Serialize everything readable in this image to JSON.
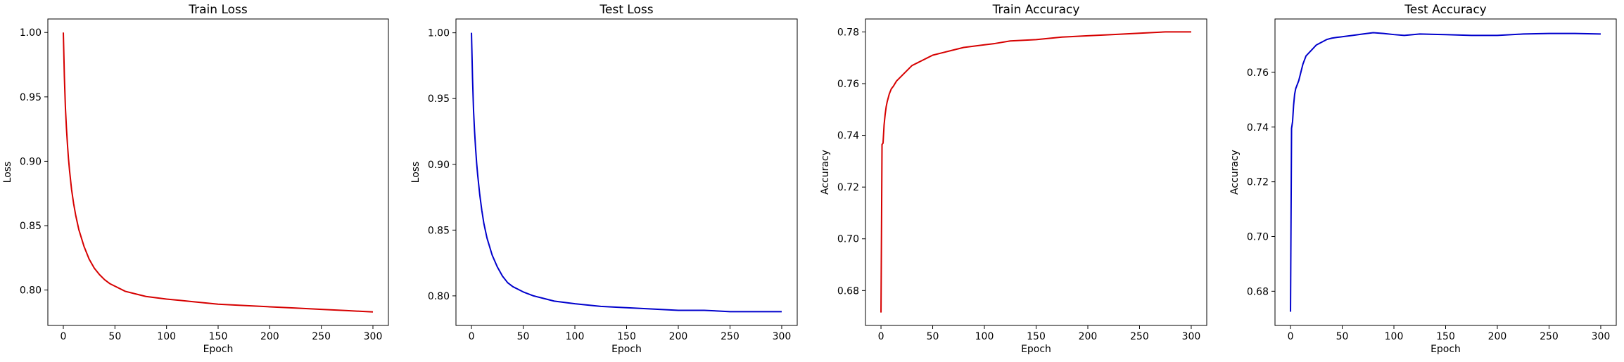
{
  "chart_data": [
    {
      "type": "line",
      "title": "Train Loss",
      "xlabel": "Epoch",
      "ylabel": "Loss",
      "xlim": [
        -15,
        315
      ],
      "ylim": [
        0.7725,
        1.0105
      ],
      "xticks": [
        0,
        50,
        100,
        150,
        200,
        250,
        300
      ],
      "yticks": [
        0.8,
        0.85,
        0.9,
        0.95,
        1.0
      ],
      "ytick_decimals": 2,
      "grid": false,
      "color": "#d60000",
      "series": [
        {
          "x": [
            0,
            1,
            2,
            3,
            4,
            5,
            6,
            8,
            10,
            12,
            15,
            20,
            25,
            30,
            35,
            40,
            45,
            50,
            60,
            70,
            80,
            90,
            100,
            125,
            150,
            175,
            200,
            225,
            250,
            275,
            300
          ],
          "y": [
            1.0,
            0.966,
            0.942,
            0.926,
            0.913,
            0.902,
            0.893,
            0.878,
            0.867,
            0.858,
            0.847,
            0.834,
            0.824,
            0.817,
            0.812,
            0.808,
            0.805,
            0.803,
            0.799,
            0.797,
            0.795,
            0.794,
            0.793,
            0.791,
            0.789,
            0.788,
            0.787,
            0.786,
            0.785,
            0.784,
            0.783
          ]
        }
      ]
    },
    {
      "type": "line",
      "title": "Test Loss",
      "xlabel": "Epoch",
      "ylabel": "Loss",
      "xlim": [
        -15,
        315
      ],
      "ylim": [
        0.7775,
        1.0105
      ],
      "xticks": [
        0,
        50,
        100,
        150,
        200,
        250,
        300
      ],
      "yticks": [
        0.8,
        0.85,
        0.9,
        0.95,
        1.0
      ],
      "ytick_decimals": 2,
      "grid": false,
      "color": "#0000cc",
      "series": [
        {
          "x": [
            0,
            1,
            2,
            3,
            4,
            5,
            6,
            8,
            10,
            12,
            15,
            20,
            25,
            30,
            35,
            40,
            45,
            50,
            60,
            70,
            80,
            90,
            100,
            125,
            150,
            175,
            200,
            225,
            250,
            275,
            300
          ],
          "y": [
            1.0,
            0.966,
            0.941,
            0.925,
            0.912,
            0.901,
            0.892,
            0.877,
            0.865,
            0.855,
            0.844,
            0.831,
            0.822,
            0.815,
            0.81,
            0.807,
            0.805,
            0.803,
            0.8,
            0.798,
            0.796,
            0.795,
            0.794,
            0.792,
            0.791,
            0.79,
            0.789,
            0.789,
            0.788,
            0.788,
            0.788
          ]
        }
      ]
    },
    {
      "type": "line",
      "title": "Train Accuracy",
      "xlabel": "Epoch",
      "ylabel": "Accuracy",
      "xlim": [
        -15,
        315
      ],
      "ylim": [
        0.6665,
        0.785
      ],
      "xticks": [
        0,
        50,
        100,
        150,
        200,
        250,
        300
      ],
      "yticks": [
        0.68,
        0.7,
        0.72,
        0.74,
        0.76,
        0.78
      ],
      "ytick_decimals": 2,
      "grid": false,
      "color": "#d60000",
      "series": [
        {
          "x": [
            0,
            1,
            2,
            3,
            4,
            5,
            6,
            8,
            10,
            12,
            15,
            20,
            25,
            30,
            35,
            40,
            45,
            50,
            60,
            70,
            80,
            90,
            100,
            110,
            125,
            150,
            175,
            200,
            225,
            250,
            275,
            300
          ],
          "y": [
            0.6715,
            0.7365,
            0.737,
            0.744,
            0.748,
            0.751,
            0.753,
            0.756,
            0.758,
            0.759,
            0.761,
            0.763,
            0.765,
            0.767,
            0.768,
            0.769,
            0.77,
            0.771,
            0.772,
            0.773,
            0.774,
            0.7745,
            0.775,
            0.7755,
            0.7765,
            0.777,
            0.778,
            0.7785,
            0.779,
            0.7795,
            0.78,
            0.78
          ]
        }
      ]
    },
    {
      "type": "line",
      "title": "Test Accuracy",
      "xlabel": "Epoch",
      "ylabel": "Accuracy",
      "xlim": [
        -15,
        315
      ],
      "ylim": [
        0.6675,
        0.7795
      ],
      "xticks": [
        0,
        50,
        100,
        150,
        200,
        250,
        300
      ],
      "yticks": [
        0.68,
        0.7,
        0.72,
        0.74,
        0.76
      ],
      "ytick_decimals": 2,
      "grid": false,
      "color": "#0000cc",
      "series": [
        {
          "x": [
            0,
            1,
            2,
            3,
            4,
            5,
            6,
            8,
            10,
            12,
            15,
            20,
            25,
            30,
            35,
            40,
            45,
            50,
            60,
            70,
            80,
            90,
            100,
            110,
            125,
            150,
            175,
            200,
            225,
            250,
            275,
            300
          ],
          "y": [
            0.6725,
            0.7395,
            0.742,
            0.748,
            0.752,
            0.754,
            0.755,
            0.757,
            0.76,
            0.763,
            0.766,
            0.768,
            0.77,
            0.771,
            0.772,
            0.7725,
            0.7728,
            0.773,
            0.7735,
            0.774,
            0.7745,
            0.7742,
            0.7738,
            0.7735,
            0.774,
            0.7738,
            0.7735,
            0.7735,
            0.774,
            0.7742,
            0.7742,
            0.774
          ]
        }
      ]
    }
  ]
}
